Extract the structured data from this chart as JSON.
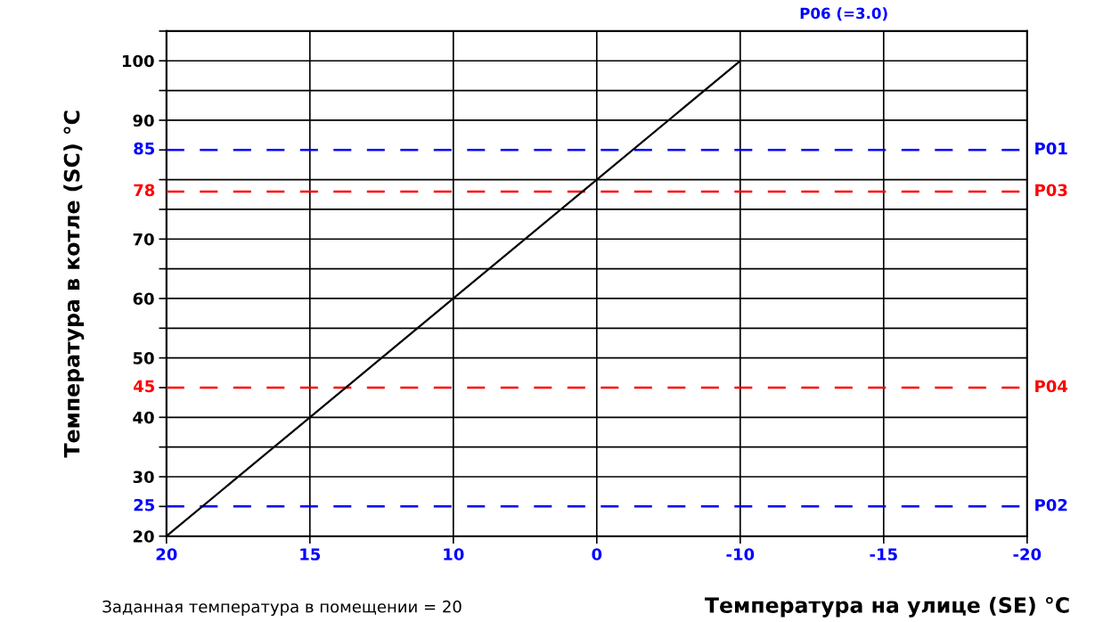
{
  "chart_data": {
    "type": "line",
    "xlabel": "Температура на улице (SE) °C",
    "ylabel": "Температура в котле (SC) °C",
    "categories": [
      "20",
      "15",
      "10",
      "0",
      "-10",
      "-15",
      "-20"
    ],
    "series": [
      {
        "color": "#000000",
        "values": [
          20,
          40,
          60,
          80,
          100,
          null,
          null
        ]
      }
    ],
    "ylim": [
      20,
      105
    ],
    "yticks": [
      20,
      30,
      40,
      50,
      60,
      70,
      {
        "value": 80,
        "label": null
      },
      90,
      100
    ],
    "ref_lines": [
      {
        "axis": "y",
        "value": 85,
        "label": "P01",
        "color": "#0000ff",
        "line_style": "dashed"
      },
      {
        "axis": "y",
        "value": 78,
        "label": "P03",
        "color": "#ff0000",
        "line_style": "dashed"
      },
      {
        "axis": "y",
        "value": 45,
        "label": "P04",
        "color": "#ff0000",
        "line_style": "dashed"
      },
      {
        "axis": "y",
        "value": 25,
        "label": "P02",
        "color": "#0000ff",
        "line_style": "dashed"
      }
    ],
    "annotations": [
      "P06 (=3.0)",
      "Заданная температура в помещении = 20",
      "85",
      "78",
      "45",
      "25"
    ],
    "grid": true,
    "legend": false,
    "marker": "none",
    "line_style": "solid"
  }
}
